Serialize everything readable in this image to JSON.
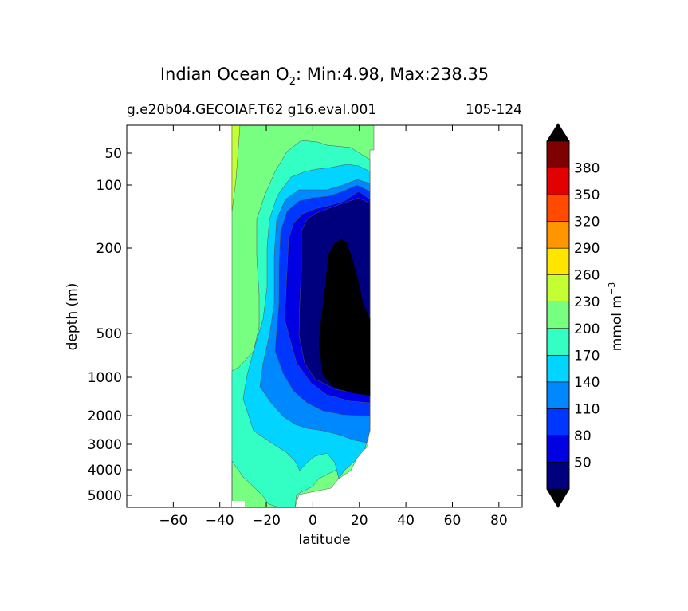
{
  "chart_data": {
    "type": "heatmap",
    "title_prefix": "Indian Ocean O",
    "title_subscript": "2",
    "title_suffix": ": Min:4.98, Max:238.35",
    "subtitle_left": "g.e20b04.GECOIAF.T62 g16.eval.001",
    "subtitle_right": "105-124",
    "xlabel": "latitude",
    "ylabel": "depth (m)",
    "xlim": [
      -80,
      90
    ],
    "xticks": [
      -60,
      -40,
      -20,
      0,
      20,
      40,
      60,
      80
    ],
    "yticks": [
      50,
      100,
      200,
      500,
      1000,
      2000,
      3000,
      4000,
      5000
    ],
    "colorbar": {
      "label": "mmol m",
      "label_exponent": "−3",
      "extend": "both",
      "tick_labels": [
        "50",
        "80",
        "110",
        "140",
        "170",
        "200",
        "230",
        "260",
        "290",
        "320",
        "350",
        "380"
      ],
      "colors": [
        "#00007f",
        "#0000e3",
        "#0037ff",
        "#0088ff",
        "#00d4ff",
        "#33ffc4",
        "#76ff80",
        "#c4ff33",
        "#ffe500",
        "#ff9600",
        "#ff4a00",
        "#e30000",
        "#7f0000"
      ],
      "under_color": "#000000",
      "over_color": "#000000"
    },
    "contour_fields": [
      {
        "level_min": 200,
        "level_max": 230,
        "color": "#76ff80",
        "extent": "basin -33..27 lat, surface to ~5000 m; upper ocean south of ~-30 and near-surface north"
      },
      {
        "level_min": 230,
        "level_max": 260,
        "color": "#c4ff33",
        "extent": "thin strip at -33 lat, surface to ~120 m"
      },
      {
        "level_min": 170,
        "level_max": 200,
        "color": "#33ffc4",
        "extent": "intermediate and deep waters, -33..27 lat"
      },
      {
        "level_min": 140,
        "level_max": 170,
        "color": "#00d4ff",
        "extent": "tongue from ~-25 lat at depth to 27 lat"
      },
      {
        "level_min": 110,
        "level_max": 140,
        "color": "#0088ff",
        "extent": "-20..25 lat, 100-2500 m"
      },
      {
        "level_min": 80,
        "level_max": 110,
        "color": "#0037ff",
        "extent": "-15..25 lat, 100-1500 m"
      },
      {
        "level_min": 50,
        "level_max": 80,
        "color": "#0000e3",
        "extent": "-10..25 lat, 100-1200 m"
      },
      {
        "level_min": 20,
        "level_max": 50,
        "color": "#00007f",
        "extent": "0..25 lat, 120-1500 m"
      },
      {
        "level_min": 0,
        "level_max": 20,
        "color": "#000000",
        "extent": "oxygen minimum zone 5..25 lat, 200-1500 m"
      }
    ]
  }
}
